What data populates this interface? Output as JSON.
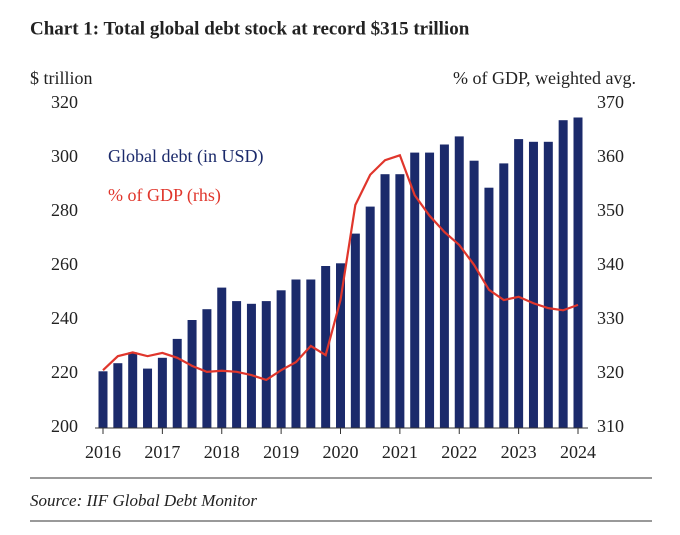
{
  "chart_data": {
    "type": "bar_line",
    "title": "Chart 1: Total global debt stock at record $315 trillion",
    "y_label": "$ trillion",
    "y2_label": "% of GDP, weighted avg.",
    "source": "Source: IIF Global Debt Monitor",
    "categories": [
      2016,
      null,
      null,
      null,
      2017,
      null,
      null,
      null,
      2018,
      null,
      null,
      null,
      2019,
      null,
      null,
      null,
      2020,
      null,
      null,
      null,
      2021,
      null,
      null,
      null,
      2022,
      null,
      null,
      null,
      2023,
      null,
      null,
      null,
      2024
    ],
    "series": [
      {
        "name": "Global debt (in USD)",
        "color": "#1b2a6b",
        "type": "bar",
        "values": [
          221,
          224,
          228,
          222,
          226,
          233,
          240,
          244,
          252,
          247,
          246,
          247,
          251,
          255,
          255,
          260,
          261,
          272,
          282,
          294,
          294,
          302,
          302,
          305,
          308,
          299,
          289,
          298,
          307,
          306,
          306,
          314,
          315
        ]
      },
      {
        "name": "% of GDP (rhs)",
        "color": "#e0362c",
        "type": "line",
        "axis": "y2",
        "values": [
          320.7,
          323.3,
          324,
          323.3,
          323.9,
          323,
          321.5,
          320.4,
          320.6,
          320.4,
          319.8,
          318.9,
          320.7,
          322.2,
          325.2,
          323.5,
          333.7,
          351.3,
          356.9,
          359.6,
          360.5,
          353.1,
          349.3,
          346.3,
          343.9,
          340.2,
          335.6,
          333.7,
          334.3,
          333.1,
          332.2,
          331.8,
          332.8
        ]
      }
    ],
    "ylim": [
      200,
      320
    ],
    "yticks": [
      200,
      220,
      240,
      260,
      280,
      300,
      320
    ],
    "y2lim": [
      310,
      370
    ],
    "y2ticks": [
      310,
      320,
      330,
      340,
      350,
      360,
      370
    ]
  }
}
